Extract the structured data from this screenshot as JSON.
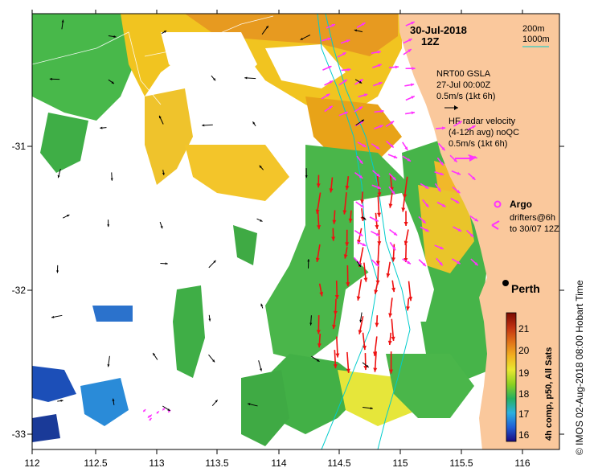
{
  "title": {
    "date": "30-Jul-2018",
    "hour": "12Z"
  },
  "isobaths": {
    "label_a": "200m",
    "label_b": "1000m",
    "color": "#00cccc"
  },
  "altimetry": {
    "product": "NRT00 GSLA",
    "date": "27-Jul 00:00Z",
    "scale": "0.5m/s (1kt 6h)"
  },
  "hf_radar": {
    "line1": "HF radar velocity",
    "line2": "(4-12h avg) noQC",
    "scale": "0.5m/s (1kt 6h)",
    "color": "#cc0000"
  },
  "legend": {
    "argo": "Argo",
    "drifters_1": "drifters@6h",
    "drifters_2": "to 30/07 12Z",
    "color": "#ff33ff"
  },
  "city": {
    "name": "Perth"
  },
  "colorbar": {
    "caption": "4h comp, p50, All Sats",
    "ticks": [
      "21",
      "20",
      "19",
      "18",
      "17",
      "16"
    ],
    "stops": [
      "#1a0a80",
      "#1f5fd6",
      "#2bb0e0",
      "#26b060",
      "#8cd020",
      "#e8e830",
      "#f2b020",
      "#e07018",
      "#c03010",
      "#7a0a00"
    ]
  },
  "credit": "© IMOS 02-Aug-2018 08:00 Hobart Time",
  "x_ticks": [
    "112",
    "112.5",
    "113",
    "113.5",
    "114",
    "114.5",
    "115",
    "115.5",
    "116"
  ],
  "y_ticks": [
    "-31",
    "-32",
    "-33"
  ],
  "colors": {
    "land": "#fac89c",
    "sst_warm": "#f5c020",
    "sst_orange": "#e89a1a",
    "sst_green": "#4cb848",
    "sst_yellow": "#e6e63a",
    "sst_blue": "#1e5fcc",
    "current_red": "#ee1111"
  }
}
